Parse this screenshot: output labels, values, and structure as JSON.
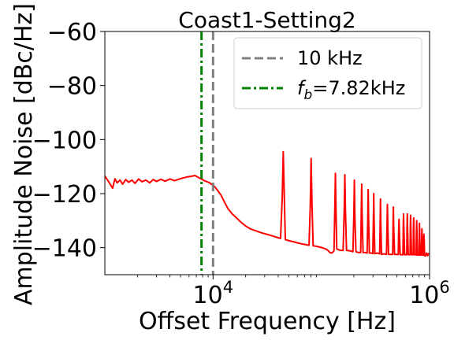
{
  "chart_data": {
    "type": "line",
    "title": "Coast1-Setting2",
    "xlabel": "Offset Frequency [Hz]",
    "ylabel": "Amplitude Noise [dBc/Hz]",
    "xscale": "log",
    "xlim": [
      1000,
      1000000
    ],
    "ylim": [
      -150,
      -60
    ],
    "xticks": [
      {
        "value": 10000,
        "base": "10",
        "exp": "4"
      },
      {
        "value": 1000000,
        "base": "10",
        "exp": "6"
      }
    ],
    "yticks": [
      {
        "value": -60,
        "label": "−60"
      },
      {
        "value": -80,
        "label": "−80"
      },
      {
        "value": -100,
        "label": "−100"
      },
      {
        "value": -120,
        "label": "−120"
      },
      {
        "value": -140,
        "label": "−140"
      }
    ],
    "grid": false,
    "legend_position": "top-right",
    "series": [
      {
        "color": "#ff0000",
        "points": [
          [
            1000,
            -113.5
          ],
          [
            1060,
            -115
          ],
          [
            1120,
            -116.5
          ],
          [
            1180,
            -118
          ],
          [
            1240,
            -114.5
          ],
          [
            1300,
            -116
          ],
          [
            1380,
            -115
          ],
          [
            1460,
            -116.5
          ],
          [
            1560,
            -114.8
          ],
          [
            1660,
            -115.8
          ],
          [
            1780,
            -115
          ],
          [
            1900,
            -116.2
          ],
          [
            2050,
            -114.6
          ],
          [
            2200,
            -115.6
          ],
          [
            2400,
            -115
          ],
          [
            2600,
            -116
          ],
          [
            2800,
            -114.8
          ],
          [
            3000,
            -115.5
          ],
          [
            3300,
            -114.7
          ],
          [
            3600,
            -115.4
          ],
          [
            4000,
            -114.6
          ],
          [
            4400,
            -115.2
          ],
          [
            4800,
            -114.7
          ],
          [
            5300,
            -114.2
          ],
          [
            5800,
            -113.8
          ],
          [
            6300,
            -113.6
          ],
          [
            6800,
            -113.3
          ],
          [
            7300,
            -114
          ],
          [
            7800,
            -114.6
          ],
          [
            8300,
            -115.2
          ],
          [
            8800,
            -115.6
          ],
          [
            9300,
            -116
          ],
          [
            9800,
            -116.7
          ],
          [
            10400,
            -117.5
          ],
          [
            11000,
            -118.8
          ],
          [
            11800,
            -120.5
          ],
          [
            12700,
            -123
          ],
          [
            13700,
            -125.5
          ],
          [
            15000,
            -127.5
          ],
          [
            16500,
            -129
          ],
          [
            18000,
            -130.5
          ],
          [
            20000,
            -132
          ],
          [
            22000,
            -133
          ],
          [
            25000,
            -133.8
          ],
          [
            28000,
            -134.5
          ],
          [
            31000,
            -135
          ],
          [
            35000,
            -135.6
          ],
          [
            39000,
            -136.2
          ],
          [
            42000,
            -136.6
          ],
          [
            43500,
            -122
          ],
          [
            44500,
            -104.5
          ],
          [
            45500,
            -121
          ],
          [
            46500,
            -137
          ],
          [
            50000,
            -137.4
          ],
          [
            55000,
            -137.8
          ],
          [
            60000,
            -138.2
          ],
          [
            66000,
            -138.6
          ],
          [
            72000,
            -138.9
          ],
          [
            77000,
            -139.1
          ],
          [
            79000,
            -125
          ],
          [
            80500,
            -107
          ],
          [
            82000,
            -124
          ],
          [
            84000,
            -139.3
          ],
          [
            90000,
            -139.5
          ],
          [
            97000,
            -139.8
          ],
          [
            105000,
            -140.2
          ],
          [
            110000,
            -140.5
          ],
          [
            115000,
            -141
          ],
          [
            120000,
            -141.8
          ],
          [
            125000,
            -142
          ],
          [
            131000,
            -141.2
          ],
          [
            133500,
            -124
          ],
          [
            135000,
            -112.5
          ],
          [
            136500,
            -125
          ],
          [
            139000,
            -140.5
          ],
          [
            150000,
            -141
          ],
          [
            159000,
            -141
          ],
          [
            163000,
            -125
          ],
          [
            165000,
            -113
          ],
          [
            167000,
            -126
          ],
          [
            171000,
            -141
          ],
          [
            185000,
            -141.2
          ],
          [
            196000,
            -141.5
          ],
          [
            200000,
            -127
          ],
          [
            202000,
            -115
          ],
          [
            204000,
            -128
          ],
          [
            209000,
            -141.5
          ],
          [
            220000,
            -141.8
          ],
          [
            231000,
            -141.8
          ],
          [
            234000,
            -127
          ],
          [
            236000,
            -116.5
          ],
          [
            238000,
            -127
          ],
          [
            243000,
            -141.8
          ],
          [
            255000,
            -141.8
          ],
          [
            265000,
            -142
          ],
          [
            269000,
            -128
          ],
          [
            271000,
            -118.5
          ],
          [
            273000,
            -128
          ],
          [
            278000,
            -142
          ],
          [
            290000,
            -142
          ],
          [
            299000,
            -142.2
          ],
          [
            303000,
            -129
          ],
          [
            305000,
            -120
          ],
          [
            307000,
            -129
          ],
          [
            312000,
            -142.2
          ],
          [
            330000,
            -142
          ],
          [
            346000,
            -142.3
          ],
          [
            350000,
            -130
          ],
          [
            352000,
            -122
          ],
          [
            354000,
            -130
          ],
          [
            360000,
            -142.5
          ],
          [
            380000,
            -142.3
          ],
          [
            400000,
            -142.5
          ],
          [
            405000,
            -131
          ],
          [
            408000,
            -124
          ],
          [
            411000,
            -131
          ],
          [
            418000,
            -142.5
          ],
          [
            440000,
            -142.5
          ],
          [
            456000,
            -142.5
          ],
          [
            460000,
            -132
          ],
          [
            463000,
            -125
          ],
          [
            466000,
            -132
          ],
          [
            475000,
            -142.5
          ],
          [
            500000,
            -142.5
          ],
          [
            514000,
            -142.5
          ],
          [
            518000,
            -134
          ],
          [
            522000,
            -129.5
          ],
          [
            526000,
            -134
          ],
          [
            535000,
            -142.6
          ],
          [
            555000,
            -142.6
          ],
          [
            568000,
            -142.6
          ],
          [
            571000,
            -133
          ],
          [
            575000,
            -127.5
          ],
          [
            579000,
            -133
          ],
          [
            588000,
            -142.6
          ],
          [
            604000,
            -142.6
          ],
          [
            616000,
            -142.6
          ],
          [
            619000,
            -133
          ],
          [
            623000,
            -127.5
          ],
          [
            627000,
            -133
          ],
          [
            636000,
            -142.6
          ],
          [
            652000,
            -142.6
          ],
          [
            661000,
            -142.6
          ],
          [
            664000,
            -133
          ],
          [
            668000,
            -128
          ],
          [
            672000,
            -133
          ],
          [
            681000,
            -142.6
          ],
          [
            697000,
            -142.6
          ],
          [
            706000,
            -142.6
          ],
          [
            709000,
            -134
          ],
          [
            713000,
            -129
          ],
          [
            717000,
            -134
          ],
          [
            726000,
            -142.6
          ],
          [
            742000,
            -142.6
          ],
          [
            753000,
            -142.7
          ],
          [
            756000,
            -134
          ],
          [
            760000,
            -130
          ],
          [
            764000,
            -134
          ],
          [
            773000,
            -142.7
          ],
          [
            790000,
            -142.7
          ],
          [
            800000,
            -142.7
          ],
          [
            803000,
            -135
          ],
          [
            807000,
            -131
          ],
          [
            811000,
            -135
          ],
          [
            820000,
            -142.7
          ],
          [
            835000,
            -142.7
          ],
          [
            843000,
            -142.7
          ],
          [
            846000,
            -136
          ],
          [
            850000,
            -133
          ],
          [
            854000,
            -136
          ],
          [
            863000,
            -142.7
          ],
          [
            875000,
            -142.7
          ],
          [
            880000,
            -142.7
          ],
          [
            883000,
            -137
          ],
          [
            887000,
            -135
          ],
          [
            891000,
            -137
          ],
          [
            900000,
            -143
          ],
          [
            920000,
            -143
          ],
          [
            940000,
            -142
          ],
          [
            960000,
            -143
          ],
          [
            980000,
            -142
          ]
        ]
      }
    ],
    "vlines": [
      {
        "x": 10000,
        "color": "#808080",
        "style": "dashed",
        "legend": "10 kHz"
      },
      {
        "x": 7820,
        "color": "#008000",
        "style": "dashdot",
        "legend_math_base": "f",
        "legend_math_sub": "b",
        "legend_value": "=7.82kHz"
      }
    ]
  }
}
